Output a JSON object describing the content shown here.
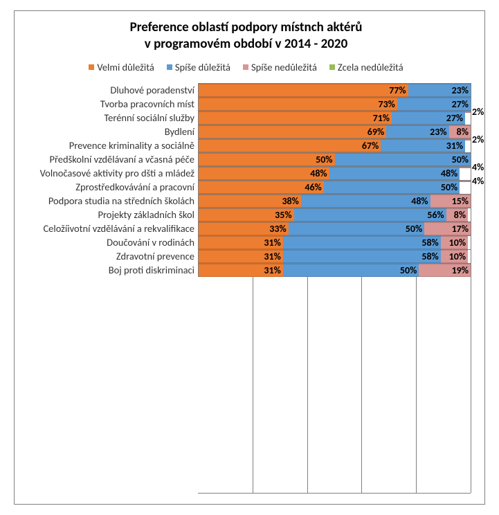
{
  "chart": {
    "type": "stacked-bar-horizontal",
    "title_line1": "Preference oblastí podpory místnch aktérů",
    "title_line2": "v programovém období v 2014 - 2020",
    "title_fontsize": 19,
    "title_weight": "bold",
    "background_color": "#ffffff",
    "border_color": "#808080",
    "grid_color": "#808080",
    "label_fontsize": 14.5,
    "value_fontsize": 14,
    "value_weight": "bold",
    "xlim": [
      0,
      100
    ],
    "xtick_step": 20,
    "legend": {
      "position": "top",
      "items": [
        {
          "label": "Velmi důležitá",
          "color": "#ed7d31"
        },
        {
          "label": "Spíše důležitá",
          "color": "#5b9bd5"
        },
        {
          "label": "Spíše nedůležitá",
          "color": "#d99694"
        },
        {
          "label": "Zcela nedůležitá",
          "color": "#9bbb59"
        }
      ]
    },
    "series_colors": [
      "#ed7d31",
      "#5b9bd5",
      "#d99694",
      "#9bbb59"
    ],
    "categories": [
      {
        "label": "Dluhové poradenství",
        "values": [
          77,
          23,
          0,
          0
        ],
        "labels": [
          "77%",
          "23%",
          "",
          ""
        ]
      },
      {
        "label": "Tvorba pracovních míst",
        "values": [
          73,
          27,
          0,
          0
        ],
        "labels": [
          "73%",
          "27%",
          "",
          ""
        ]
      },
      {
        "label": "Terénní sociální služby",
        "values": [
          71,
          27,
          2,
          0
        ],
        "labels": [
          "71%",
          "27%",
          "2%",
          ""
        ]
      },
      {
        "label": "Bydlení",
        "values": [
          69,
          23,
          8,
          0
        ],
        "labels": [
          "69%",
          "23%",
          "8%",
          ""
        ]
      },
      {
        "label": "Prevence kriminality a sociálně",
        "values": [
          67,
          31,
          2,
          0
        ],
        "labels": [
          "67%",
          "31%",
          "2%",
          ""
        ]
      },
      {
        "label": "Předškolní vzdělávaní a včasná péče",
        "values": [
          50,
          50,
          0,
          0
        ],
        "labels": [
          "50%",
          "50%",
          "",
          ""
        ]
      },
      {
        "label": "Volnočasové aktivity pro dšti a mládež",
        "values": [
          48,
          48,
          4,
          0
        ],
        "labels": [
          "48%",
          "48%",
          "4%",
          ""
        ]
      },
      {
        "label": "Zprostředkovávání a pracovní",
        "values": [
          46,
          50,
          4,
          0
        ],
        "labels": [
          "46%",
          "50%",
          "4%",
          ""
        ]
      },
      {
        "label": "Podpora studia na středních školách",
        "values": [
          38,
          48,
          15,
          0
        ],
        "labels": [
          "38%",
          "48%",
          "15%",
          ""
        ]
      },
      {
        "label": "Projekty základních škol",
        "values": [
          35,
          56,
          8,
          0
        ],
        "labels": [
          "35%",
          "56%",
          "8%",
          ""
        ]
      },
      {
        "label": "Celožíivotní vzdělávání a rekvalifikace",
        "values": [
          33,
          50,
          17,
          0
        ],
        "labels": [
          "33%",
          "50%",
          "17%",
          ""
        ]
      },
      {
        "label": "Doučování v rodinách",
        "values": [
          31,
          58,
          10,
          0
        ],
        "labels": [
          "31%",
          "58%",
          "10%",
          ""
        ]
      },
      {
        "label": "Zdravotní prevence",
        "values": [
          31,
          58,
          10,
          0
        ],
        "labels": [
          "31%",
          "58%",
          "10%",
          ""
        ]
      },
      {
        "label": "Boj proti diskriminaci",
        "values": [
          31,
          50,
          19,
          0
        ],
        "labels": [
          "31%",
          "50%",
          "19%",
          ""
        ]
      }
    ]
  }
}
